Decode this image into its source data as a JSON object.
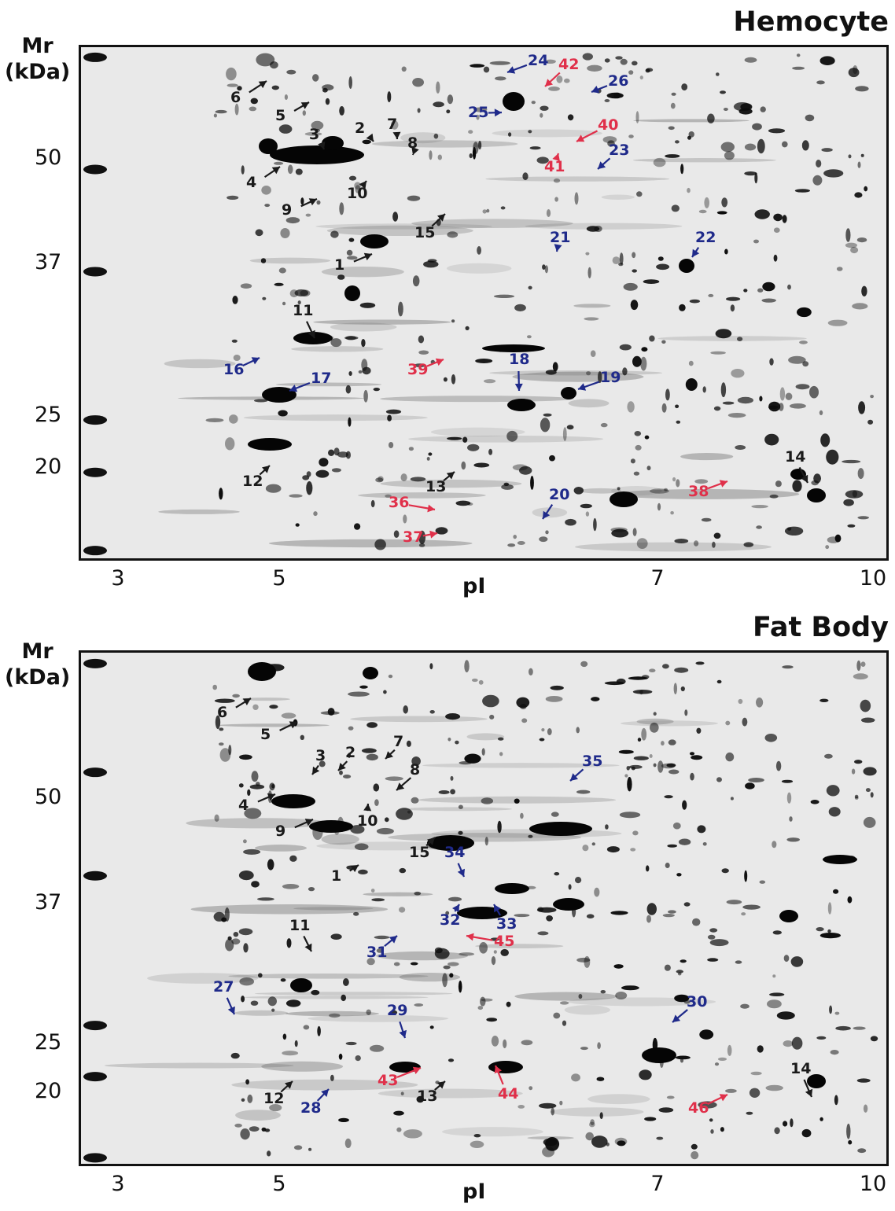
{
  "colors": {
    "black": "#1a1a1a",
    "blue": "#1f2a8a",
    "red": "#e0304a"
  },
  "axes": {
    "y_title_line1": "Mr",
    "y_title_line2": "(kDa)",
    "x_title": "pI",
    "x_ticks": [
      "3",
      "5",
      "7",
      "10"
    ],
    "y_ticks": [
      "50",
      "37",
      "25",
      "20"
    ]
  },
  "panels": [
    {
      "title": "Hemocyte",
      "spots": [
        {
          "label": "1",
          "color": "black"
        },
        {
          "label": "2",
          "color": "black"
        },
        {
          "label": "3",
          "color": "black"
        },
        {
          "label": "4",
          "color": "black"
        },
        {
          "label": "5",
          "color": "black"
        },
        {
          "label": "6",
          "color": "black"
        },
        {
          "label": "7",
          "color": "black"
        },
        {
          "label": "8",
          "color": "black"
        },
        {
          "label": "9",
          "color": "black"
        },
        {
          "label": "10",
          "color": "black"
        },
        {
          "label": "11",
          "color": "black"
        },
        {
          "label": "12",
          "color": "black"
        },
        {
          "label": "13",
          "color": "black"
        },
        {
          "label": "14",
          "color": "black"
        },
        {
          "label": "15",
          "color": "black"
        },
        {
          "label": "16",
          "color": "blue"
        },
        {
          "label": "17",
          "color": "blue"
        },
        {
          "label": "18",
          "color": "blue"
        },
        {
          "label": "19",
          "color": "blue"
        },
        {
          "label": "20",
          "color": "blue"
        },
        {
          "label": "21",
          "color": "blue"
        },
        {
          "label": "22",
          "color": "blue"
        },
        {
          "label": "23",
          "color": "blue"
        },
        {
          "label": "24",
          "color": "blue"
        },
        {
          "label": "25",
          "color": "blue"
        },
        {
          "label": "26",
          "color": "blue"
        },
        {
          "label": "36",
          "color": "red"
        },
        {
          "label": "37",
          "color": "red"
        },
        {
          "label": "38",
          "color": "red"
        },
        {
          "label": "39",
          "color": "red"
        },
        {
          "label": "40",
          "color": "red"
        },
        {
          "label": "41",
          "color": "red"
        },
        {
          "label": "42",
          "color": "red"
        }
      ]
    },
    {
      "title": "Fat Body",
      "spots": [
        {
          "label": "1",
          "color": "black"
        },
        {
          "label": "2",
          "color": "black"
        },
        {
          "label": "3",
          "color": "black"
        },
        {
          "label": "4",
          "color": "black"
        },
        {
          "label": "5",
          "color": "black"
        },
        {
          "label": "6",
          "color": "black"
        },
        {
          "label": "7",
          "color": "black"
        },
        {
          "label": "8",
          "color": "black"
        },
        {
          "label": "9",
          "color": "black"
        },
        {
          "label": "10",
          "color": "black"
        },
        {
          "label": "11",
          "color": "black"
        },
        {
          "label": "12",
          "color": "black"
        },
        {
          "label": "13",
          "color": "black"
        },
        {
          "label": "14",
          "color": "black"
        },
        {
          "label": "15",
          "color": "black"
        },
        {
          "label": "27",
          "color": "blue"
        },
        {
          "label": "28",
          "color": "blue"
        },
        {
          "label": "29",
          "color": "blue"
        },
        {
          "label": "30",
          "color": "blue"
        },
        {
          "label": "31",
          "color": "blue"
        },
        {
          "label": "32",
          "color": "blue"
        },
        {
          "label": "33",
          "color": "blue"
        },
        {
          "label": "34",
          "color": "blue"
        },
        {
          "label": "35",
          "color": "blue"
        },
        {
          "label": "43",
          "color": "red"
        },
        {
          "label": "44",
          "color": "red"
        },
        {
          "label": "45",
          "color": "red"
        },
        {
          "label": "46",
          "color": "red"
        }
      ]
    }
  ]
}
